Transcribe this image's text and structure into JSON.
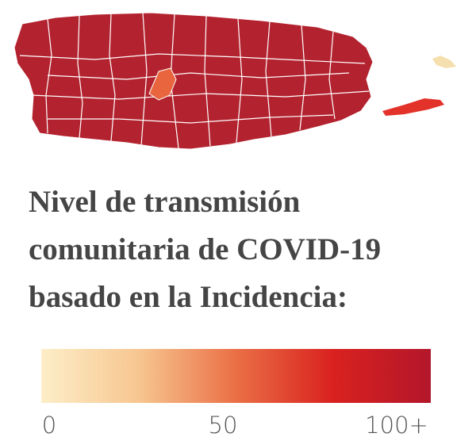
{
  "title_lines": [
    "Nivel de transmisión",
    "comunitaria de COVID-19",
    "basado en la Incidencia:"
  ],
  "legend": {
    "lim": [
      0,
      100
    ],
    "ticks": [
      0,
      50,
      {
        "value": 100,
        "label": "100+"
      }
    ],
    "colors": [
      "#fdeec8",
      "#f7c690",
      "#ea6f45",
      "#d9211f",
      "#b3172b"
    ]
  }
}
